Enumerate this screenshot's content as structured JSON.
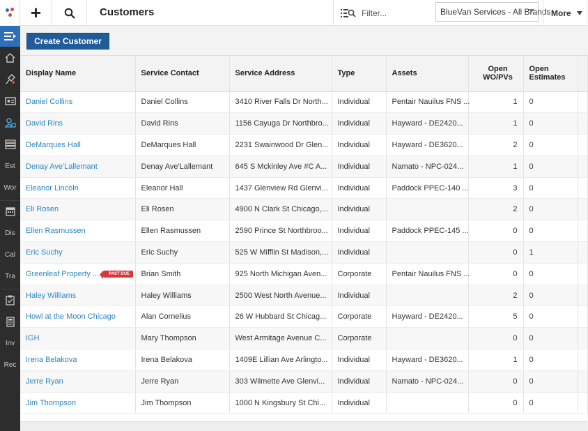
{
  "topbar": {
    "title": "Customers",
    "filter_placeholder": "Filter...",
    "brand_select": "BlueVan Services - All Brands",
    "more_label": "More"
  },
  "sidebar": {
    "items": [
      "Est",
      "Wor",
      "Dis",
      "Cal",
      "Tra",
      "Inv",
      "Rec"
    ]
  },
  "actions": {
    "create_label": "Create Customer"
  },
  "table": {
    "headers": [
      "Display Name",
      "Service Contact",
      "Service Address",
      "Type",
      "Assets",
      "Open WO/PVs",
      "Open Estimates"
    ],
    "rows": [
      {
        "name": "Daniel Collins",
        "contact": "Daniel Collins",
        "address": "3410 River Falls Dr North...",
        "type": "Individual",
        "assets": "Pentair Nauilus FNS ...",
        "wo": "1",
        "est": "0"
      },
      {
        "name": "David Rins",
        "contact": "David Rins",
        "address": "1156 Cayuga Dr Northbro...",
        "type": "Individual",
        "assets": "Hayward - DE2420...",
        "wo": "1",
        "est": "0"
      },
      {
        "name": "DeMarques Hall",
        "contact": "DeMarques Hall",
        "address": "2231 Swainwood Dr Glen...",
        "type": "Individual",
        "assets": "Hayward - DE3620...",
        "wo": "2",
        "est": "0"
      },
      {
        "name": "Denay Ave'Lallemant",
        "contact": "Denay Ave'Lallemant",
        "address": "645 S Mckinley Ave #C A...",
        "type": "Individual",
        "assets": "Namato - NPC-024...",
        "wo": "1",
        "est": "0"
      },
      {
        "name": "Eleanor Lincoln",
        "contact": "Eleanor Hall",
        "address": "1437 Glenview Rd Glenvi...",
        "type": "Individual",
        "assets": "Paddock PPEC-140 ...",
        "wo": "3",
        "est": "0"
      },
      {
        "name": "Eli Rosen",
        "contact": "Eli Rosen",
        "address": "4900 N Clark St Chicago,...",
        "type": "Individual",
        "assets": "",
        "wo": "2",
        "est": "0"
      },
      {
        "name": "Ellen Rasmussen",
        "contact": "Ellen Rasmussen",
        "address": "2590 Prince St Northbroo...",
        "type": "Individual",
        "assets": "Paddock PPEC-145 ...",
        "wo": "0",
        "est": "0"
      },
      {
        "name": "Eric Suchy",
        "contact": "Eric Suchy",
        "address": "525 W Mifflin St Madison,...",
        "type": "Individual",
        "assets": "",
        "wo": "0",
        "est": "1"
      },
      {
        "name": "Greenleaf Property ...",
        "badge": "PAST DUE",
        "contact": "Brian Smith",
        "address": "925 North Michigan Aven...",
        "type": "Corporate",
        "assets": "Pentair Nauilus FNS ...",
        "wo": "0",
        "est": "0"
      },
      {
        "name": "Haley Williams",
        "contact": "Haley Williams",
        "address": "2500 West North Avenue...",
        "type": "Individual",
        "assets": "",
        "wo": "2",
        "est": "0"
      },
      {
        "name": "Howl at the Moon Chicago",
        "contact": "Alan Cornelius",
        "address": "26 W Hubbard St Chicag...",
        "type": "Corporate",
        "assets": "Hayward - DE2420...",
        "wo": "5",
        "est": "0"
      },
      {
        "name": "IGH",
        "contact": "Mary Thompson",
        "address": "West Armitage Avenue C...",
        "type": "Corporate",
        "assets": "",
        "wo": "0",
        "est": "0"
      },
      {
        "name": "Irena Belakova",
        "contact": "Irena Belakova",
        "address": "1409E Lillian Ave Arlingto...",
        "type": "Individual",
        "assets": "Hayward - DE3620...",
        "wo": "1",
        "est": "0"
      },
      {
        "name": "Jerre Ryan",
        "contact": "Jerre Ryan",
        "address": "303 Wilmette Ave Glenvi...",
        "type": "Individual",
        "assets": "Namato - NPC-024...",
        "wo": "0",
        "est": "0"
      },
      {
        "name": "Jim Thompson",
        "contact": "Jim Thompson",
        "address": "1000 N Kingsbury St Chi...",
        "type": "Individual",
        "assets": "",
        "wo": "0",
        "est": "0"
      }
    ]
  },
  "colors": {
    "accent": "#1f5c99",
    "link": "#2a87c3",
    "badge": "#d9363e",
    "sidebar": "#2d2d2d",
    "sidebar_active": "#2f6fb7"
  }
}
